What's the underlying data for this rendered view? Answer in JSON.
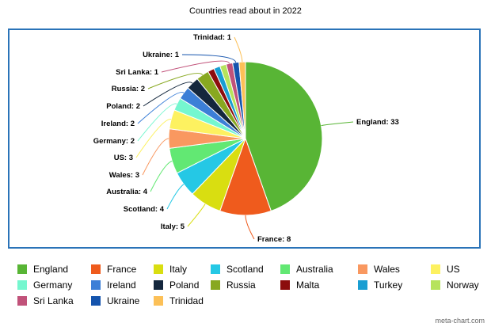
{
  "chart_data": {
    "type": "pie",
    "title": "Countries read about in 2022",
    "label_suffix": ": ",
    "categories": [
      "England",
      "France",
      "Italy",
      "Scotland",
      "Australia",
      "Wales",
      "US",
      "Germany",
      "Ireland",
      "Poland",
      "Russia",
      "Malta",
      "Turkey",
      "Norway",
      "Sri Lanka",
      "Ukraine",
      "Trinidad"
    ],
    "values": [
      33,
      8,
      5,
      4,
      4,
      3,
      3,
      2,
      2,
      2,
      2,
      1,
      1,
      1,
      1,
      1,
      1
    ],
    "colors": [
      "#58b535",
      "#ef5b1d",
      "#d9de11",
      "#25c8e5",
      "#62e873",
      "#f99860",
      "#fdf160",
      "#75f7cf",
      "#3c7fd7",
      "#14273d",
      "#88a820",
      "#8c0d0d",
      "#199ed2",
      "#b6e35c",
      "#c1527a",
      "#1554ad",
      "#fcc057"
    ],
    "legend_position": "bottom",
    "credit": "meta-chart.com"
  }
}
